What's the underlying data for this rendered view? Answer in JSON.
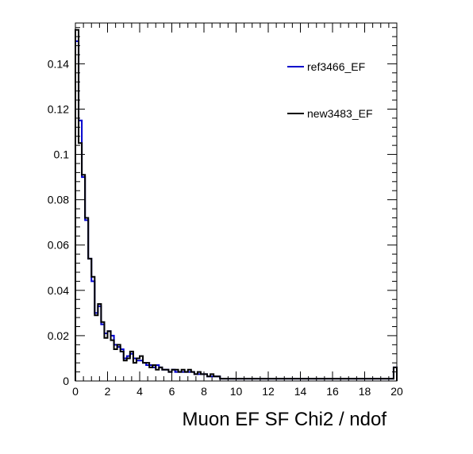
{
  "chart_data": {
    "type": "line",
    "xlabel": "Muon EF SF Chi2 / ndof",
    "ylabel": "",
    "xlim": [
      0,
      20
    ],
    "ylim": [
      0,
      0.158
    ],
    "x_ticks": [
      0,
      2,
      4,
      6,
      8,
      10,
      12,
      14,
      16,
      18,
      20
    ],
    "y_ticks": [
      0,
      0.02,
      0.04,
      0.06,
      0.08,
      0.1,
      0.12,
      0.14
    ],
    "y_tick_labels": [
      "0",
      "0.02",
      "0.04",
      "0.06",
      "0.08",
      "0.1",
      "0.12",
      "0.14"
    ],
    "bin_width": 0.2,
    "legend_position": "top-right",
    "grid": false,
    "series": [
      {
        "name": "ref3466_EF",
        "color": "#0000cc",
        "values": [
          0.15,
          0.115,
          0.09,
          0.071,
          0.054,
          0.044,
          0.03,
          0.033,
          0.025,
          0.021,
          0.022,
          0.02,
          0.016,
          0.015,
          0.014,
          0.01,
          0.011,
          0.012,
          0.01,
          0.009,
          0.009,
          0.008,
          0.007,
          0.007,
          0.006,
          0.007,
          0.006,
          0.005,
          0.005,
          0.004,
          0.005,
          0.004,
          0.004,
          0.004,
          0.004,
          0.004,
          0.004,
          0.003,
          0.003,
          0.003,
          0.003,
          0.002,
          0.002,
          0.002,
          0.002,
          0.001,
          0.001,
          0.001,
          0.001,
          0.001,
          0.001,
          0.001,
          0.001,
          0.001,
          0.001,
          0.001,
          0.001,
          0.001,
          0.001,
          0.001,
          0.001,
          0.001,
          0.001,
          0.001,
          0.001,
          0.001,
          0.001,
          0.001,
          0.001,
          0.001,
          0.001,
          0.001,
          0.001,
          0.001,
          0.001,
          0.001,
          0.001,
          0.001,
          0.001,
          0.001,
          0.001,
          0.001,
          0.001,
          0.001,
          0.001,
          0.001,
          0.001,
          0.001,
          0.001,
          0.001,
          0.001,
          0.001,
          0.001,
          0.001,
          0.001,
          0.001,
          0.001,
          0.001,
          0.001,
          0.006
        ]
      },
      {
        "name": "new3483_EF",
        "color": "#000000",
        "values": [
          0.155,
          0.105,
          0.091,
          0.072,
          0.054,
          0.046,
          0.029,
          0.034,
          0.026,
          0.019,
          0.022,
          0.018,
          0.014,
          0.016,
          0.013,
          0.009,
          0.01,
          0.013,
          0.008,
          0.01,
          0.011,
          0.008,
          0.008,
          0.006,
          0.007,
          0.005,
          0.006,
          0.005,
          0.005,
          0.004,
          0.005,
          0.005,
          0.004,
          0.005,
          0.004,
          0.005,
          0.004,
          0.003,
          0.004,
          0.003,
          0.003,
          0.002,
          0.003,
          0.002,
          0.002,
          0.001,
          0.001,
          0.001,
          0.001,
          0.001,
          0.001,
          0.001,
          0.001,
          0.001,
          0.001,
          0.001,
          0.001,
          0.001,
          0.001,
          0.001,
          0.001,
          0.001,
          0.001,
          0.001,
          0.001,
          0.001,
          0.001,
          0.001,
          0.001,
          0.001,
          0.001,
          0.001,
          0.001,
          0.001,
          0.001,
          0.001,
          0.001,
          0.001,
          0.001,
          0.001,
          0.001,
          0.001,
          0.001,
          0.001,
          0.001,
          0.001,
          0.001,
          0.001,
          0.001,
          0.001,
          0.001,
          0.001,
          0.001,
          0.001,
          0.001,
          0.001,
          0.001,
          0.001,
          0.001,
          0.006
        ]
      }
    ]
  }
}
